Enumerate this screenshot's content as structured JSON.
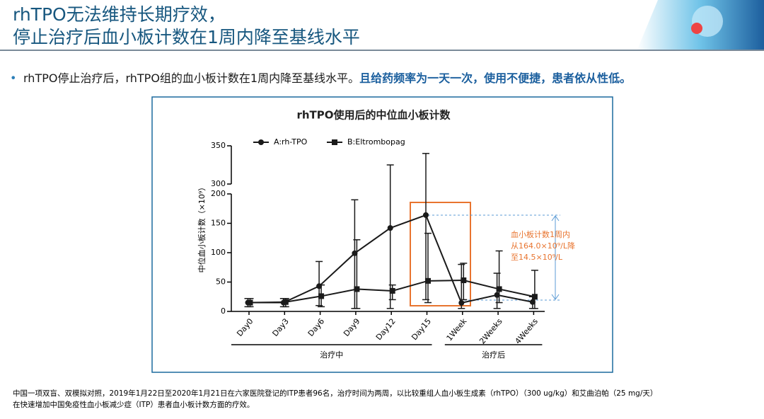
{
  "slide": {
    "title": [
      "rhTPO无法维持长期疗效，",
      "停止治疗后血小板计数在1周内降至基线水平"
    ],
    "bullet": {
      "text": "rhTPO停止治疗后，rhTPO组的血小板计数在1周内降至基线水平。",
      "emphasis": "且给药频率为一天一次，使用不便捷，患者依从性低。"
    },
    "footnote": [
      "中国一项双盲、双模拟对照，2019年1月22日至2020年1月21日在六家医院登记的ITP患者96名，治疗时间为两周，以比较重组人血小板生成素（rhTPO）（300 ug/kg）和艾曲泊帕（25 mg/天）",
      "在快速增加中国免疫性血小板减少症（ITP）患者血小板计数方面的疗效。"
    ]
  },
  "chart_data": {
    "type": "line",
    "title": "rhTPO使用后的中位血小板计数",
    "y_label": "中位血小板计数（×10⁹）",
    "categories": [
      "Day0",
      "Day3",
      "Day6",
      "Day9",
      "Day12",
      "Day15",
      "1Week",
      "2Weeks",
      "4Weeks"
    ],
    "groups": [
      {
        "label": "治疗中",
        "from": 0,
        "to": 5
      },
      {
        "label": "治疗后",
        "from": 6,
        "to": 8
      }
    ],
    "series": [
      {
        "name": "A:rh-TPO",
        "marker": "circle",
        "color": "#1a1a1a",
        "values": [
          15,
          15,
          43,
          99,
          142,
          164.0,
          14.5,
          28,
          16
        ],
        "lower": [
          8,
          8,
          10,
          5,
          5,
          20,
          5,
          5,
          5
        ],
        "upper": [
          22,
          22,
          85,
          190,
          325,
          340,
          80,
          65,
          25
        ]
      },
      {
        "name": "B:Eltrombopag",
        "marker": "square",
        "color": "#1a1a1a",
        "values": [
          15,
          16,
          26,
          38,
          35,
          52,
          53,
          38,
          25
        ],
        "lower": [
          8,
          8,
          8,
          5,
          20,
          15,
          20,
          15,
          5
        ],
        "upper": [
          22,
          22,
          45,
          122,
          45,
          133,
          82,
          103,
          70
        ]
      }
    ],
    "ylim": [
      0,
      350
    ],
    "axis_break": [
      200,
      300
    ],
    "yticks": [
      0,
      50,
      100,
      150,
      200,
      300,
      350
    ],
    "annotation": [
      "血小板计数1周内",
      "从164.0×10⁹/L降",
      "至14.5×10⁹/L"
    ]
  }
}
